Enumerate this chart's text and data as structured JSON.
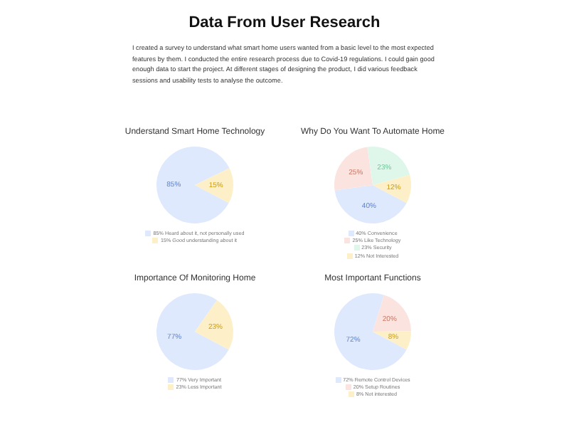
{
  "chart_data": [
    {
      "type": "other",
      "title": "Data From User Research",
      "subtitle": "I created a survey to understand what smart home users wanted from a basic level to the most expected features by them. I conducted the entire research process due to Covid-19 regulations. I could gain good enough data to start the project. At different stages of designing the product, I did various feedback sessions and usability tests to analyse the outcome."
    },
    {
      "type": "pie",
      "title": "Understand Smart Home Technology",
      "categories": [
        "85% Heard about it, not personally used",
        "15% Good understanding about it"
      ],
      "values": [
        85,
        15
      ],
      "colors": [
        "#dfe9fd",
        "#fdf0c9"
      ],
      "value_labels": [
        "85%",
        "15%"
      ],
      "legend": "bottom"
    },
    {
      "type": "pie",
      "title": "Why Do You Want To Automate Home",
      "categories": [
        "40% Convenience",
        "25% Like Technology",
        "23% Security",
        "12% Not Interested"
      ],
      "values": [
        40,
        25,
        23,
        12
      ],
      "colors": [
        "#dfe9fd",
        "#fbe4df",
        "#dff7ea",
        "#fdf0c9"
      ],
      "value_labels": [
        "40%",
        "25%",
        "23%",
        "12%"
      ],
      "legend": "bottom"
    },
    {
      "type": "pie",
      "title": "Importance Of Monitoring Home",
      "categories": [
        "77% Very Important",
        "23% Less Important"
      ],
      "values": [
        77,
        23
      ],
      "colors": [
        "#dfe9fd",
        "#fdf0c9"
      ],
      "value_labels": [
        "77%",
        "23%"
      ],
      "legend": "bottom"
    },
    {
      "type": "pie",
      "title": "Most Important Functions",
      "categories": [
        "72% Remote Control Devices",
        "20% Setup Routines",
        "8% Not interested"
      ],
      "values": [
        72,
        20,
        8
      ],
      "colors": [
        "#dfe9fd",
        "#fbe4df",
        "#fdf0c9"
      ],
      "value_labels": [
        "72%",
        "20%",
        "8%"
      ],
      "legend": "bottom"
    }
  ]
}
